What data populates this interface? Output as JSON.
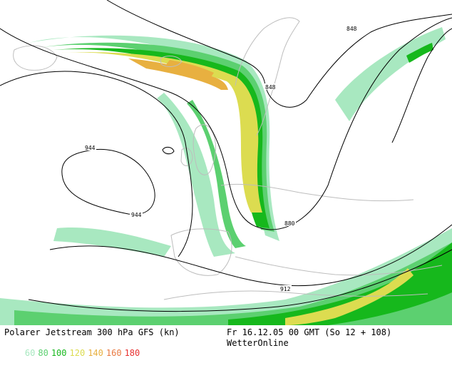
{
  "map": {
    "contour_labels": [
      {
        "id": "c848a",
        "text": "848"
      },
      {
        "id": "c848b",
        "text": "848"
      },
      {
        "id": "c880",
        "text": "880"
      },
      {
        "id": "c912",
        "text": "912"
      },
      {
        "id": "c944a",
        "text": "944"
      },
      {
        "id": "c944b",
        "text": "944"
      }
    ],
    "colors": {
      "background": "#ffffff",
      "coast": "#bdbdbd",
      "contour": "#000000",
      "band_60": "#a8e8c0",
      "band_80": "#5cd070",
      "band_100": "#16b81c",
      "band_120": "#dcdc50",
      "band_140": "#e8b040",
      "band_160": "#e87840",
      "band_180": "#e83030"
    }
  },
  "footer": {
    "title": "Polarer Jetstream 300 hPa GFS (kn)",
    "valid_time": "Fr 16.12.05 00 GMT (So 12 + 108)",
    "brand": "WetterOnline",
    "legend": [
      {
        "value": "60",
        "color": "#a8e8c0"
      },
      {
        "value": "80",
        "color": "#5cd070"
      },
      {
        "value": "100",
        "color": "#16b81c"
      },
      {
        "value": "120",
        "color": "#dcdc50"
      },
      {
        "value": "140",
        "color": "#e8b040"
      },
      {
        "value": "160",
        "color": "#e87840"
      },
      {
        "value": "180",
        "color": "#e83030"
      }
    ]
  }
}
